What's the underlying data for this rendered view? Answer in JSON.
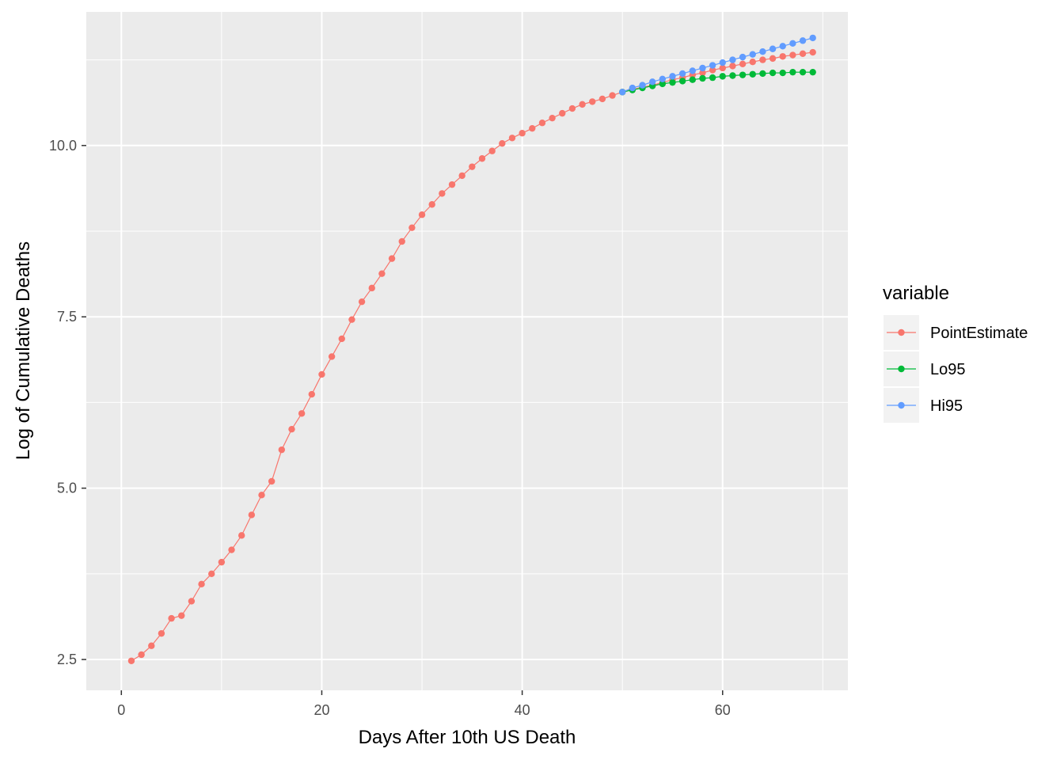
{
  "chart_data": {
    "type": "line",
    "xlabel": "Days After 10th US Death",
    "ylabel": "Log of Cumulative Deaths",
    "xlim": [
      -3.5,
      72.5
    ],
    "ylim": [
      2.05,
      11.95
    ],
    "x_ticks": [
      0,
      20,
      40,
      60
    ],
    "x_tick_labels": [
      "0",
      "20",
      "40",
      "60"
    ],
    "y_ticks": [
      2.5,
      5.0,
      7.5,
      10.0
    ],
    "y_tick_labels": [
      "2.5",
      "5.0",
      "7.5",
      "10.0"
    ],
    "grid": true,
    "legend": {
      "title": "variable",
      "position": "right",
      "entries": [
        "PointEstimate",
        "Lo95",
        "Hi95"
      ]
    },
    "series": [
      {
        "name": "PointEstimate",
        "color": "#F8766D",
        "x": [
          1,
          2,
          3,
          4,
          5,
          6,
          7,
          8,
          9,
          10,
          11,
          12,
          13,
          14,
          15,
          16,
          17,
          18,
          19,
          20,
          21,
          22,
          23,
          24,
          25,
          26,
          27,
          28,
          29,
          30,
          31,
          32,
          33,
          34,
          35,
          36,
          37,
          38,
          39,
          40,
          41,
          42,
          43,
          44,
          45,
          46,
          47,
          48,
          49,
          50,
          51,
          52,
          53,
          54,
          55,
          56,
          57,
          58,
          59,
          60,
          61,
          62,
          63,
          64,
          65,
          66,
          67,
          68,
          69
        ],
        "y": [
          2.48,
          2.57,
          2.7,
          2.88,
          3.1,
          3.14,
          3.35,
          3.6,
          3.75,
          3.92,
          4.1,
          4.31,
          4.61,
          4.9,
          5.1,
          5.56,
          5.86,
          6.09,
          6.37,
          6.66,
          6.92,
          7.18,
          7.46,
          7.72,
          7.92,
          8.13,
          8.35,
          8.6,
          8.8,
          8.99,
          9.14,
          9.3,
          9.43,
          9.56,
          9.69,
          9.81,
          9.92,
          10.03,
          10.11,
          10.18,
          10.25,
          10.33,
          10.4,
          10.47,
          10.54,
          10.6,
          10.64,
          10.68,
          10.73,
          10.78,
          10.82,
          10.85,
          10.88,
          10.92,
          10.96,
          10.99,
          11.03,
          11.06,
          11.1,
          11.13,
          11.16,
          11.19,
          11.22,
          11.25,
          11.27,
          11.3,
          11.32,
          11.34,
          11.36
        ]
      },
      {
        "name": "Lo95",
        "color": "#00BA38",
        "x": [
          50,
          51,
          52,
          53,
          54,
          55,
          56,
          57,
          58,
          59,
          60,
          61,
          62,
          63,
          64,
          65,
          66,
          67,
          68,
          69
        ],
        "y": [
          10.78,
          10.81,
          10.84,
          10.87,
          10.9,
          10.92,
          10.94,
          10.96,
          10.98,
          10.99,
          11.01,
          11.02,
          11.03,
          11.04,
          11.05,
          11.06,
          11.06,
          11.07,
          11.07,
          11.07
        ]
      },
      {
        "name": "Hi95",
        "color": "#619CFF",
        "x": [
          50,
          51,
          52,
          53,
          54,
          55,
          56,
          57,
          58,
          59,
          60,
          61,
          62,
          63,
          64,
          65,
          66,
          67,
          68,
          69
        ],
        "y": [
          10.78,
          10.84,
          10.88,
          10.93,
          10.97,
          11.01,
          11.05,
          11.09,
          11.13,
          11.17,
          11.21,
          11.25,
          11.29,
          11.33,
          11.37,
          11.41,
          11.45,
          11.49,
          11.53,
          11.57
        ]
      }
    ]
  }
}
